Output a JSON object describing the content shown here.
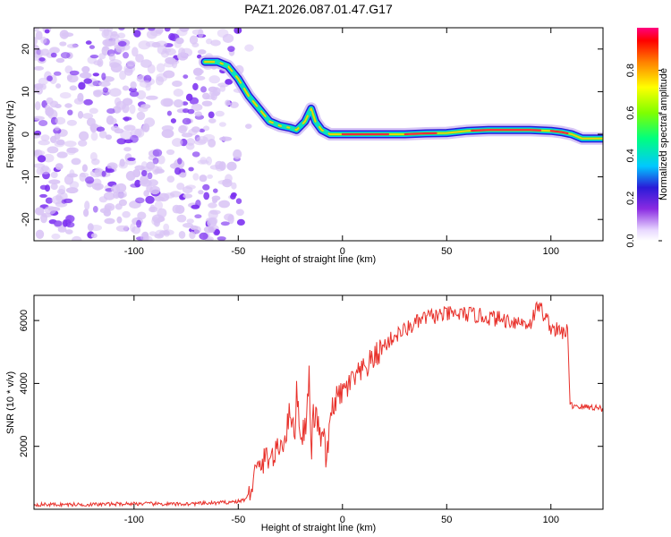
{
  "title": "PAZ1.2026.087.01.47.G17",
  "colors": {
    "snr_line": "#e8302a",
    "speckle_light": "#d9c4f5",
    "speckle_dark": "#7b2ff0",
    "ridge_core": "#ff2a3c",
    "ridge_mid": "#23e070",
    "ridge_outer": "#2a1bd8"
  },
  "chart_data": [
    {
      "type": "heatmap",
      "title": "PAZ1.2026.087.01.47.G17",
      "xlabel": "Height of straight line (km)",
      "ylabel": "Frequency (Hz)",
      "xlim": [
        -148,
        125
      ],
      "ylim": [
        -25,
        25
      ],
      "xticks": [
        -100,
        -50,
        0,
        50,
        100
      ],
      "yticks": [
        -20,
        -10,
        0,
        10,
        20
      ],
      "noise_region_x": [
        -148,
        -50
      ],
      "ridge": {
        "x": [
          -66,
          -60,
          -55,
          -50,
          -45,
          -40,
          -35,
          -30,
          -25,
          -22,
          -18,
          -15,
          -13,
          -10,
          -6,
          -2,
          0,
          10,
          20,
          30,
          40,
          50,
          60,
          70,
          80,
          90,
          100,
          105,
          110,
          115,
          120,
          125
        ],
        "frequency": [
          17,
          17,
          16,
          13,
          9,
          6,
          3,
          2,
          1.5,
          1,
          3,
          6,
          3,
          1,
          0,
          0,
          0,
          0,
          0,
          0,
          0.2,
          0.3,
          0.8,
          1,
          1,
          1,
          0.8,
          0.5,
          0,
          -1,
          -1,
          -1
        ]
      },
      "colorbar": {
        "label": "Normalized spectral amplitude",
        "range": [
          0,
          1
        ],
        "ticks": [
          "0.0",
          "0.2",
          "0.4",
          "0.6",
          "0.8"
        ]
      }
    },
    {
      "type": "line",
      "title": "",
      "xlabel": "Height of straight line (km)",
      "ylabel": "SNR (10 * v/v)",
      "xlim": [
        -148,
        125
      ],
      "ylim": [
        0,
        6800
      ],
      "xticks": [
        -100,
        -50,
        0,
        50,
        100
      ],
      "yticks": [
        2000,
        4000,
        6000
      ],
      "series": [
        {
          "name": "SNR",
          "x": [
            -148,
            -120,
            -100,
            -80,
            -60,
            -50,
            -47,
            -45,
            -43,
            -42,
            -40,
            -36,
            -33,
            -30,
            -27,
            -25,
            -23,
            -22,
            -20,
            -18,
            -17,
            -16,
            -15,
            -14,
            -12,
            -10,
            -9,
            -8,
            -6,
            -5,
            -3,
            0,
            5,
            10,
            15,
            20,
            25,
            30,
            40,
            50,
            60,
            70,
            80,
            90,
            94,
            100,
            105,
            108,
            109,
            110,
            112,
            115,
            120,
            125
          ],
          "y": [
            150,
            150,
            180,
            160,
            200,
            250,
            300,
            450,
            900,
            1150,
            1300,
            1700,
            1650,
            2000,
            2400,
            3300,
            2200,
            3800,
            2300,
            2600,
            3100,
            4300,
            1600,
            3000,
            2800,
            2100,
            2600,
            1500,
            2500,
            3300,
            3500,
            3700,
            4100,
            4400,
            4800,
            5200,
            5500,
            5700,
            6100,
            6200,
            6200,
            6100,
            6000,
            5900,
            6500,
            5800,
            5600,
            5700,
            3400,
            3300,
            3300,
            3250,
            3250,
            3200
          ]
        }
      ]
    }
  ]
}
